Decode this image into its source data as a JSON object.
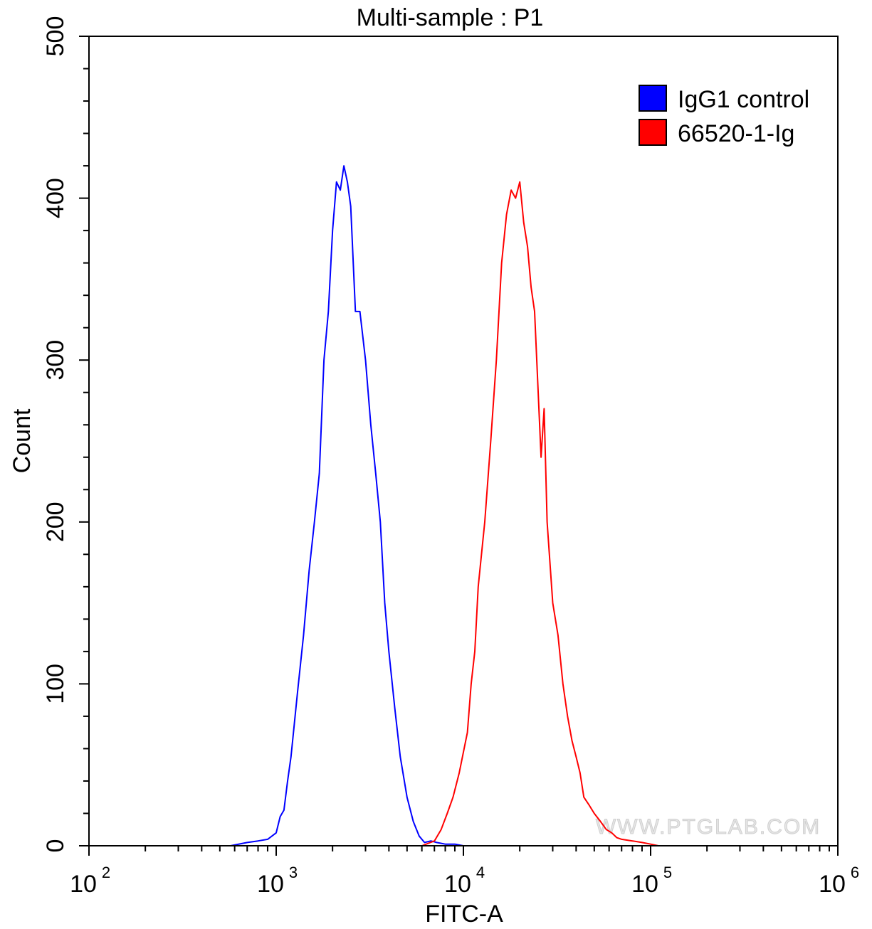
{
  "chart_data": {
    "type": "line",
    "title": "Multi-sample : P1",
    "xlabel": "FITC-A",
    "ylabel": "Count",
    "x_scale": "log",
    "xlim": [
      100,
      1000000
    ],
    "ylim": [
      0,
      500
    ],
    "x_ticks": [
      {
        "value": 100,
        "base": "10",
        "exp": "2"
      },
      {
        "value": 1000,
        "base": "10",
        "exp": "3"
      },
      {
        "value": 10000,
        "base": "10",
        "exp": "4"
      },
      {
        "value": 100000,
        "base": "10",
        "exp": "5"
      },
      {
        "value": 1000000,
        "base": "10",
        "exp": "6"
      }
    ],
    "y_ticks": [
      0,
      100,
      200,
      300,
      400,
      500
    ],
    "legend_position": "top-right",
    "watermark": "WWW.PTGLAB.COM",
    "series": [
      {
        "name": "IgG1 control",
        "color": "#0000ff",
        "x": [
          570,
          700,
          800,
          900,
          1000,
          1050,
          1100,
          1150,
          1200,
          1300,
          1400,
          1500,
          1600,
          1700,
          1800,
          1900,
          2000,
          2100,
          2200,
          2300,
          2400,
          2500,
          2650,
          2800,
          3000,
          3200,
          3400,
          3600,
          3800,
          4000,
          4300,
          4600,
          5000,
          5400,
          5800,
          6200,
          6700,
          7200,
          8000,
          9000,
          10000,
          11000
        ],
        "y": [
          0,
          2,
          3,
          4,
          8,
          18,
          22,
          40,
          55,
          95,
          130,
          170,
          200,
          230,
          300,
          330,
          380,
          410,
          405,
          420,
          410,
          395,
          330,
          330,
          300,
          260,
          230,
          200,
          150,
          120,
          85,
          55,
          30,
          15,
          6,
          2,
          3,
          2,
          1,
          1,
          0,
          0
        ]
      },
      {
        "name": "66520-1-Ig",
        "color": "#ff0000",
        "x": [
          6000,
          7000,
          7600,
          8200,
          8800,
          9500,
          10500,
          11000,
          11500,
          12000,
          13000,
          14000,
          15000,
          16000,
          17000,
          18000,
          19000,
          20000,
          21000,
          22000,
          23000,
          24000,
          26000,
          27000,
          28000,
          30000,
          32000,
          34000,
          36000,
          38000,
          40000,
          42000,
          44000,
          47000,
          50000,
          54000,
          58000,
          62000,
          66000,
          70000,
          80000,
          90000,
          100000,
          110000
        ],
        "y": [
          0,
          3,
          10,
          20,
          30,
          45,
          70,
          100,
          120,
          160,
          200,
          250,
          300,
          360,
          390,
          405,
          400,
          410,
          385,
          370,
          345,
          330,
          240,
          270,
          200,
          150,
          130,
          100,
          80,
          65,
          55,
          45,
          30,
          25,
          20,
          15,
          10,
          8,
          5,
          4,
          3,
          2,
          1,
          0
        ]
      }
    ]
  }
}
